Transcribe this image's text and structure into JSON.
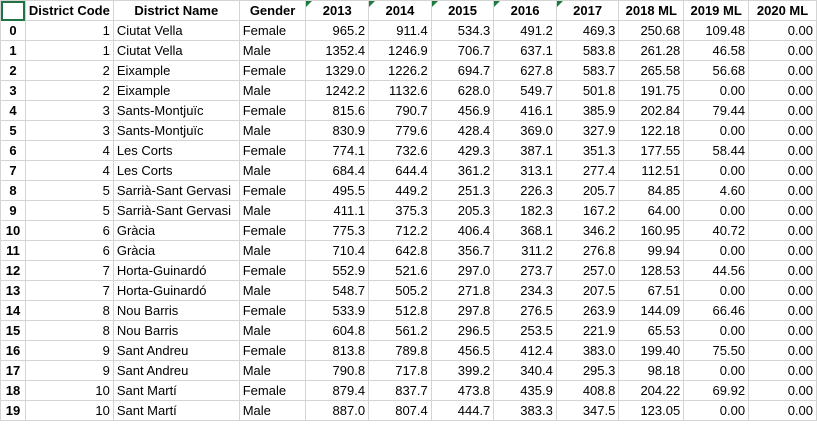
{
  "headers": {
    "idx": "",
    "district_code": "District Code",
    "district_name": "District Name",
    "gender": "Gender",
    "y2013": "2013",
    "y2014": "2014",
    "y2015": "2015",
    "y2016": "2016",
    "y2017": "2017",
    "ml2018": "2018 ML",
    "ml2019": "2019 ML",
    "ml2020": "2020 ML"
  },
  "rows": [
    [
      "0",
      "1",
      "Ciutat Vella",
      "Female",
      "965.2",
      "911.4",
      "534.3",
      "491.2",
      "469.3",
      "250.68",
      "109.48",
      "0.00"
    ],
    [
      "1",
      "1",
      "Ciutat Vella",
      "Male",
      "1352.4",
      "1246.9",
      "706.7",
      "637.1",
      "583.8",
      "261.28",
      "46.58",
      "0.00"
    ],
    [
      "2",
      "2",
      "Eixample",
      "Female",
      "1329.0",
      "1226.2",
      "694.7",
      "627.8",
      "583.7",
      "265.58",
      "56.68",
      "0.00"
    ],
    [
      "3",
      "2",
      "Eixample",
      "Male",
      "1242.2",
      "1132.6",
      "628.0",
      "549.7",
      "501.8",
      "191.75",
      "0.00",
      "0.00"
    ],
    [
      "4",
      "3",
      "Sants-Montjuïc",
      "Female",
      "815.6",
      "790.7",
      "456.9",
      "416.1",
      "385.9",
      "202.84",
      "79.44",
      "0.00"
    ],
    [
      "5",
      "3",
      "Sants-Montjuïc",
      "Male",
      "830.9",
      "779.6",
      "428.4",
      "369.0",
      "327.9",
      "122.18",
      "0.00",
      "0.00"
    ],
    [
      "6",
      "4",
      "Les Corts",
      "Female",
      "774.1",
      "732.6",
      "429.3",
      "387.1",
      "351.3",
      "177.55",
      "58.44",
      "0.00"
    ],
    [
      "7",
      "4",
      "Les Corts",
      "Male",
      "684.4",
      "644.4",
      "361.2",
      "313.1",
      "277.4",
      "112.51",
      "0.00",
      "0.00"
    ],
    [
      "8",
      "5",
      "Sarrià-Sant Gervasi",
      "Female",
      "495.5",
      "449.2",
      "251.3",
      "226.3",
      "205.7",
      "84.85",
      "4.60",
      "0.00"
    ],
    [
      "9",
      "5",
      "Sarrià-Sant Gervasi",
      "Male",
      "411.1",
      "375.3",
      "205.3",
      "182.3",
      "167.2",
      "64.00",
      "0.00",
      "0.00"
    ],
    [
      "10",
      "6",
      "Gràcia",
      "Female",
      "775.3",
      "712.2",
      "406.4",
      "368.1",
      "346.2",
      "160.95",
      "40.72",
      "0.00"
    ],
    [
      "11",
      "6",
      "Gràcia",
      "Male",
      "710.4",
      "642.8",
      "356.7",
      "311.2",
      "276.8",
      "99.94",
      "0.00",
      "0.00"
    ],
    [
      "12",
      "7",
      "Horta-Guinardó",
      "Female",
      "552.9",
      "521.6",
      "297.0",
      "273.7",
      "257.0",
      "128.53",
      "44.56",
      "0.00"
    ],
    [
      "13",
      "7",
      "Horta-Guinardó",
      "Male",
      "548.7",
      "505.2",
      "271.8",
      "234.3",
      "207.5",
      "67.51",
      "0.00",
      "0.00"
    ],
    [
      "14",
      "8",
      "Nou Barris",
      "Female",
      "533.9",
      "512.8",
      "297.8",
      "276.5",
      "263.9",
      "144.09",
      "66.46",
      "0.00"
    ],
    [
      "15",
      "8",
      "Nou Barris",
      "Male",
      "604.8",
      "561.2",
      "296.5",
      "253.5",
      "221.9",
      "65.53",
      "0.00",
      "0.00"
    ],
    [
      "16",
      "9",
      "Sant Andreu",
      "Female",
      "813.8",
      "789.8",
      "456.5",
      "412.4",
      "383.0",
      "199.40",
      "75.50",
      "0.00"
    ],
    [
      "17",
      "9",
      "Sant Andreu",
      "Male",
      "790.8",
      "717.8",
      "399.2",
      "340.4",
      "295.3",
      "98.18",
      "0.00",
      "0.00"
    ],
    [
      "18",
      "10",
      "Sant Martí",
      "Female",
      "879.4",
      "837.7",
      "473.8",
      "435.9",
      "408.8",
      "204.22",
      "69.92",
      "0.00"
    ],
    [
      "19",
      "10",
      "Sant Martí",
      "Male",
      "887.0",
      "807.4",
      "444.7",
      "383.3",
      "347.5",
      "123.05",
      "0.00",
      "0.00"
    ]
  ]
}
